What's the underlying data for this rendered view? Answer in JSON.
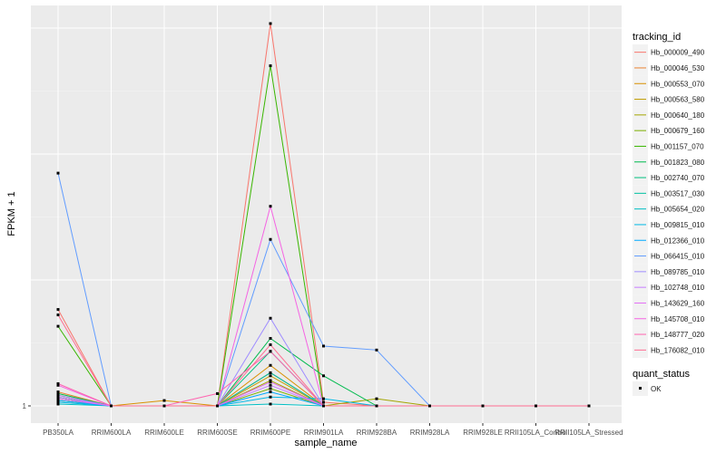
{
  "chart_data": {
    "type": "line",
    "xlabel": "sample_name",
    "ylabel": "FPKM + 1",
    "y_tick_labels": [
      "1"
    ],
    "categories": [
      "PB350LA",
      "RRIM600LA",
      "RRIM600LE",
      "RRIM600SE",
      "RRIM600PE",
      "RRIM901LA",
      "RRIM928BA",
      "RRIM928LA",
      "RRIM928LE",
      "RRII105LA_Control",
      "RRII105LA_Stressed"
    ],
    "y_scale": "log",
    "background": "#ebebeb",
    "grid": true,
    "legend_position": "right",
    "legend": {
      "title": "tracking_id",
      "status_title": "quant_status",
      "status_label": "OK"
    },
    "series": [
      {
        "name": "Hb_000009_490",
        "color": "#F8766D",
        "values": [
          1.7,
          1.0,
          1.0,
          1.0,
          8.2,
          1.02,
          1.0,
          1.0,
          1.0,
          1.0,
          1.0
        ]
      },
      {
        "name": "Hb_000046_530",
        "color": "#EA8331",
        "values": [
          1.08,
          1.0,
          1.0,
          1.0,
          1.2,
          1.0,
          1.0,
          1.0,
          1.0,
          1.0,
          1.0
        ]
      },
      {
        "name": "Hb_000553_070",
        "color": "#D89000",
        "values": [
          1.06,
          1.0,
          1.03,
          1.0,
          1.25,
          1.0,
          1.0,
          1.0,
          1.0,
          1.0,
          1.0
        ]
      },
      {
        "name": "Hb_000563_580",
        "color": "#C09B00",
        "values": [
          1.05,
          1.0,
          1.0,
          1.0,
          1.18,
          1.0,
          1.0,
          1.0,
          1.0,
          1.0,
          1.0
        ]
      },
      {
        "name": "Hb_000640_180",
        "color": "#A3A500",
        "values": [
          1.04,
          1.0,
          1.0,
          1.0,
          1.15,
          1.0,
          1.04,
          1.0,
          1.0,
          1.0,
          1.0
        ]
      },
      {
        "name": "Hb_000679_160",
        "color": "#7CAE00",
        "values": [
          1.03,
          1.0,
          1.0,
          1.0,
          1.1,
          1.0,
          1.0,
          1.0,
          1.0,
          1.0,
          1.0
        ]
      },
      {
        "name": "Hb_001157_070",
        "color": "#39B600",
        "values": [
          1.55,
          1.0,
          1.0,
          1.0,
          6.5,
          1.0,
          1.0,
          1.0,
          1.0,
          1.0,
          1.0
        ]
      },
      {
        "name": "Hb_001823_080",
        "color": "#00BB4E",
        "values": [
          1.07,
          1.0,
          1.0,
          1.0,
          1.45,
          1.18,
          1.0,
          1.0,
          1.0,
          1.0,
          1.0
        ]
      },
      {
        "name": "Hb_002740_070",
        "color": "#00BF7D",
        "values": [
          1.05,
          1.0,
          1.0,
          1.0,
          1.35,
          1.0,
          1.0,
          1.0,
          1.0,
          1.0,
          1.0
        ]
      },
      {
        "name": "Hb_003517_030",
        "color": "#00C1A3",
        "values": [
          1.04,
          1.0,
          1.0,
          1.0,
          1.2,
          1.0,
          1.0,
          1.0,
          1.0,
          1.0,
          1.0
        ]
      },
      {
        "name": "Hb_005654_020",
        "color": "#00BFC4",
        "values": [
          1.01,
          1.0,
          1.0,
          1.0,
          1.01,
          1.0,
          1.0,
          1.0,
          1.0,
          1.0,
          1.0
        ]
      },
      {
        "name": "Hb_009815_010",
        "color": "#00B8E5",
        "values": [
          1.02,
          1.0,
          1.0,
          1.0,
          1.05,
          1.04,
          1.0,
          1.0,
          1.0,
          1.0,
          1.0
        ]
      },
      {
        "name": "Hb_012366_010",
        "color": "#00A9FF",
        "values": [
          1.03,
          1.0,
          1.0,
          1.0,
          1.08,
          1.0,
          1.0,
          1.0,
          1.0,
          1.0,
          1.0
        ]
      },
      {
        "name": "Hb_066415_010",
        "color": "#619CFF",
        "values": [
          3.6,
          1.0,
          1.0,
          1.0,
          2.5,
          1.39,
          1.36,
          1.0,
          1.0,
          1.0,
          1.0
        ]
      },
      {
        "name": "Hb_089785_010",
        "color": "#9F8CFF",
        "values": [
          1.06,
          1.0,
          1.0,
          1.0,
          1.62,
          1.0,
          1.0,
          1.0,
          1.0,
          1.0,
          1.0
        ]
      },
      {
        "name": "Hb_102748_010",
        "color": "#C77CFF",
        "values": [
          1.05,
          1.0,
          1.0,
          1.0,
          1.12,
          1.0,
          1.0,
          1.0,
          1.0,
          1.0,
          1.0
        ]
      },
      {
        "name": "Hb_143629_160",
        "color": "#E36EF6",
        "values": [
          1.04,
          1.0,
          1.0,
          1.0,
          1.14,
          1.0,
          1.0,
          1.0,
          1.0,
          1.0,
          1.0
        ]
      },
      {
        "name": "Hb_145708_010",
        "color": "#F564E3",
        "values": [
          1.12,
          1.0,
          1.0,
          1.0,
          3.0,
          1.0,
          1.0,
          1.0,
          1.0,
          1.0,
          1.0
        ]
      },
      {
        "name": "Hb_148777_020",
        "color": "#FF64B0",
        "values": [
          1.13,
          1.0,
          1.0,
          1.07,
          1.35,
          1.0,
          1.0,
          1.0,
          1.0,
          1.0,
          1.0
        ]
      },
      {
        "name": "Hb_176082_010",
        "color": "#FF6C91",
        "values": [
          1.65,
          1.0,
          1.0,
          1.0,
          1.4,
          1.0,
          1.0,
          1.0,
          1.0,
          1.0,
          1.0
        ]
      }
    ]
  }
}
